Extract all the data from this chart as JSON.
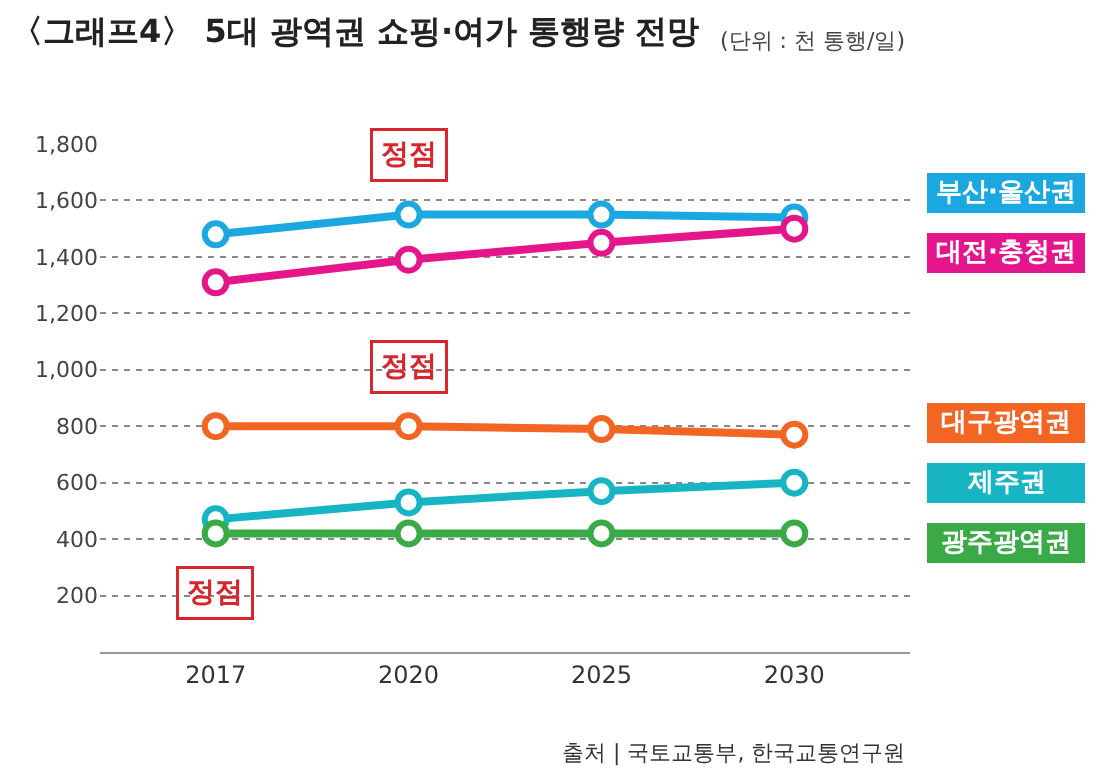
{
  "chart_data": {
    "type": "line",
    "title": "〈그래프4〉 5대 광역권 쇼핑·여가 통행량 전망",
    "categories": [
      "2017",
      "2020",
      "2025",
      "2030"
    ],
    "series": [
      {
        "name": "부산·울산권",
        "color": "#1ba8e0",
        "values": [
          1480,
          1550,
          1550,
          1540
        ]
      },
      {
        "name": "대전·충청권",
        "color": "#e5168c",
        "values": [
          1310,
          1390,
          1450,
          1500
        ]
      },
      {
        "name": "대구광역권",
        "color": "#f26522",
        "values": [
          800,
          800,
          790,
          770
        ]
      },
      {
        "name": "제주권",
        "color": "#17b5c4",
        "values": [
          470,
          530,
          570,
          600
        ]
      },
      {
        "name": "광주광역권",
        "color": "#3aaa47",
        "values": [
          420,
          420,
          420,
          420
        ]
      }
    ],
    "ylim": [
      0,
      1800
    ],
    "yticks": [
      {
        "value": 0,
        "label": null
      },
      {
        "value": 200,
        "label": "200"
      },
      {
        "value": 400,
        "label": "400"
      },
      {
        "value": 600,
        "label": "600"
      },
      {
        "value": 800,
        "label": "800"
      },
      {
        "value": 1000,
        "label": "1,000"
      },
      {
        "value": 1200,
        "label": "1,200"
      },
      {
        "value": 1400,
        "label": "1,400"
      },
      {
        "value": 1600,
        "label": "1,600"
      },
      {
        "value": 1800,
        "label": "1,800"
      }
    ],
    "grid": "y",
    "legend": false,
    "marker": "circle",
    "line_style": "solid",
    "annotations": [
      "(단위 : 천 통행/일)",
      "출처 | 국토교통부, 한국교통연구원",
      {
        "text": "정점",
        "x": "2020",
        "y": 1550
      },
      {
        "text": "정점",
        "x": "2020",
        "y": 800
      },
      {
        "text": "정점",
        "x": "2017",
        "y": 420
      }
    ]
  }
}
